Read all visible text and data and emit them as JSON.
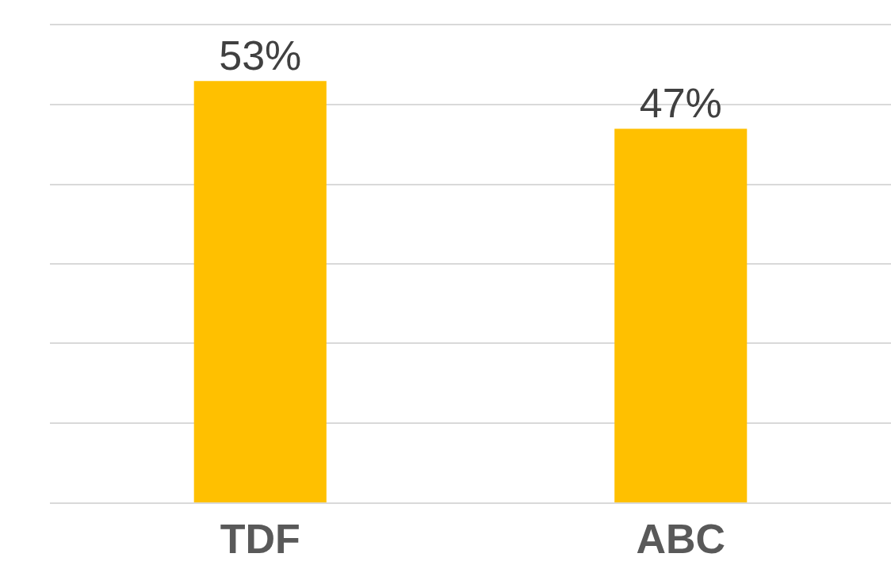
{
  "chart_data": {
    "type": "bar",
    "categories": [
      "TDF",
      "ABC"
    ],
    "values": [
      53,
      47
    ],
    "value_labels": [
      "53%",
      "47%"
    ],
    "color": "#ffc000",
    "ylim": [
      0,
      60
    ],
    "yticks": [
      {
        "value": 0,
        "label": null
      },
      {
        "value": 10,
        "label": null
      },
      {
        "value": 20,
        "label": null
      },
      {
        "value": 30,
        "label": null
      },
      {
        "value": 40,
        "label": null
      },
      {
        "value": 50,
        "label": null
      },
      {
        "value": 60,
        "label": null
      }
    ],
    "grid": "y",
    "tick_labels": "x"
  }
}
